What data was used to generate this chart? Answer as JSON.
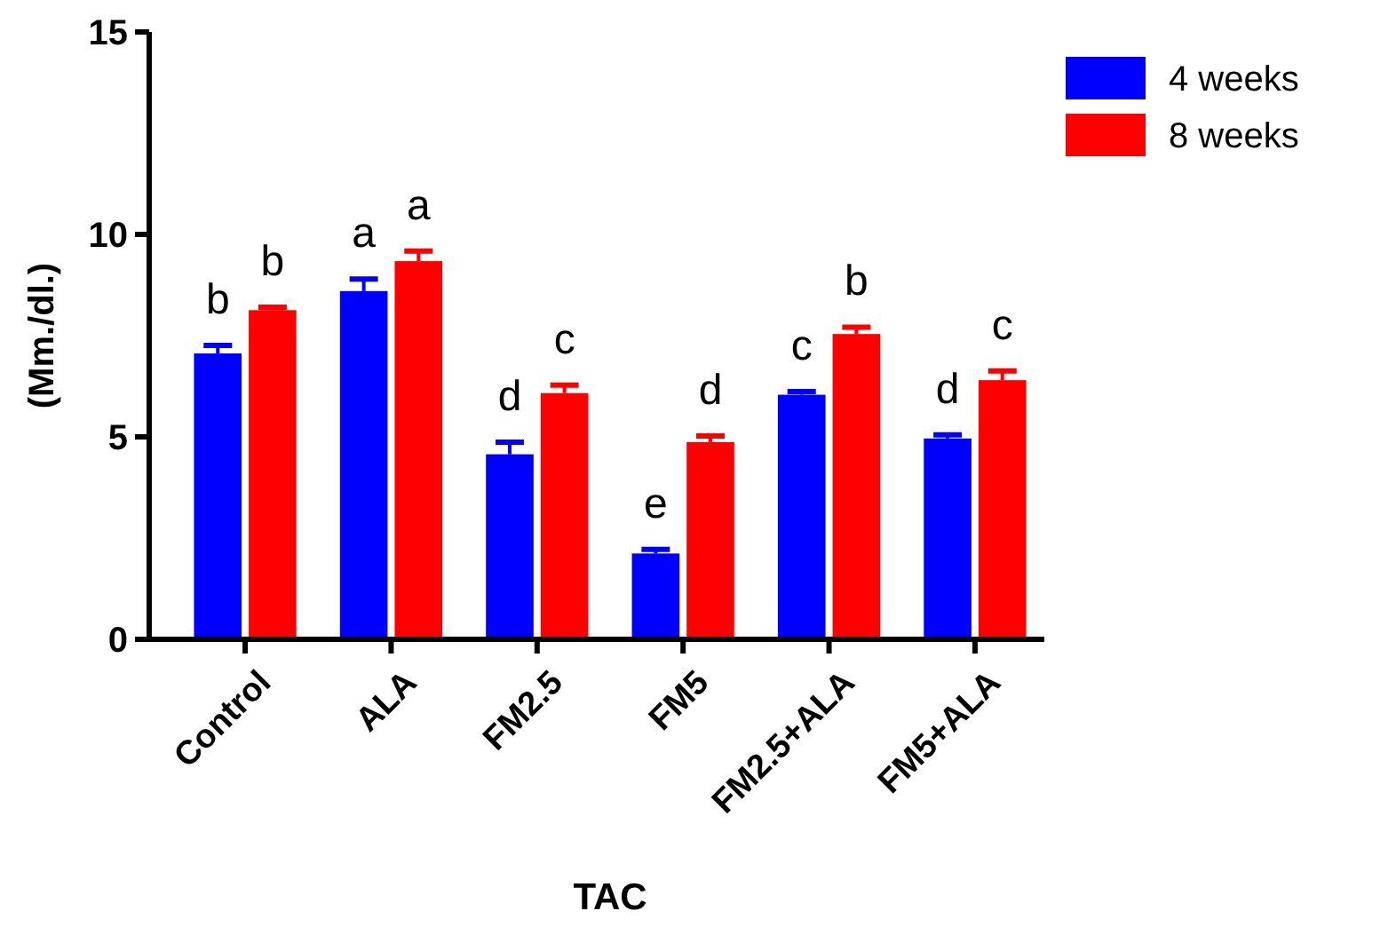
{
  "chart_data": {
    "type": "bar",
    "xlabel": "TAC",
    "ylabel": "(Mm./dl.)",
    "categories": [
      "Control",
      "ALA",
      "FM2.5",
      "FM5",
      "FM2.5+ALA",
      "FM5+ALA"
    ],
    "ylim": [
      0,
      15
    ],
    "yticks": [
      0,
      5,
      10,
      15
    ],
    "grid": false,
    "legend": "top right",
    "series": [
      {
        "name": "4 weeks",
        "color": "#0000ff",
        "values": [
          7.06,
          8.6,
          4.57,
          2.12,
          6.04,
          4.96
        ],
        "errors": [
          0.2,
          0.3,
          0.3,
          0.1,
          0.08,
          0.09
        ],
        "value_labels": [
          "b",
          "a",
          "d",
          "e",
          "c",
          "d"
        ]
      },
      {
        "name": "8 weeks",
        "color": "#ff0000",
        "values": [
          8.13,
          9.34,
          6.08,
          4.87,
          7.54,
          6.4
        ],
        "errors": [
          0.07,
          0.25,
          0.2,
          0.15,
          0.17,
          0.23
        ],
        "value_labels": [
          "b",
          "a",
          "c",
          "d",
          "b",
          "c"
        ]
      }
    ]
  }
}
